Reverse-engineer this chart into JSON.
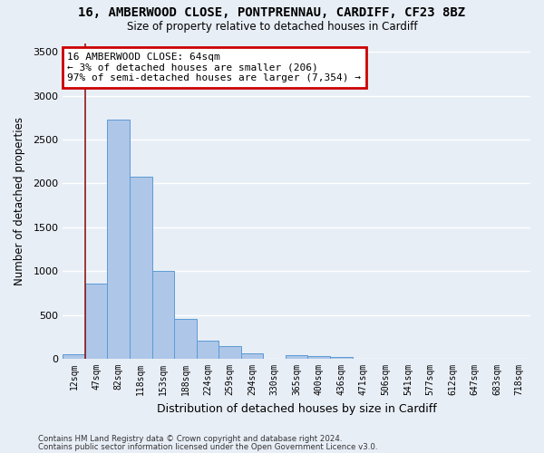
{
  "title1": "16, AMBERWOOD CLOSE, PONTPRENNAU, CARDIFF, CF23 8BZ",
  "title2": "Size of property relative to detached houses in Cardiff",
  "xlabel": "Distribution of detached houses by size in Cardiff",
  "ylabel": "Number of detached properties",
  "categories": [
    "12sqm",
    "47sqm",
    "82sqm",
    "118sqm",
    "153sqm",
    "188sqm",
    "224sqm",
    "259sqm",
    "294sqm",
    "330sqm",
    "365sqm",
    "400sqm",
    "436sqm",
    "471sqm",
    "506sqm",
    "541sqm",
    "577sqm",
    "612sqm",
    "647sqm",
    "683sqm",
    "718sqm"
  ],
  "values": [
    55,
    855,
    2730,
    2075,
    1005,
    455,
    205,
    145,
    65,
    0,
    45,
    35,
    25,
    0,
    0,
    0,
    0,
    0,
    0,
    0,
    0
  ],
  "bar_color": "#aec6e8",
  "bar_edge_color": "#5b9bd5",
  "vline_x": 0.5,
  "vline_color": "#8b1a1a",
  "annotation_text": "16 AMBERWOOD CLOSE: 64sqm\n← 3% of detached houses are smaller (206)\n97% of semi-detached houses are larger (7,354) →",
  "annotation_box_color": "#ffffff",
  "annotation_box_edge": "#cc0000",
  "ylim": [
    0,
    3600
  ],
  "yticks": [
    0,
    500,
    1000,
    1500,
    2000,
    2500,
    3000,
    3500
  ],
  "background_color": "#e8eef6",
  "grid_color": "#ffffff",
  "footer1": "Contains HM Land Registry data © Crown copyright and database right 2024.",
  "footer2": "Contains public sector information licensed under the Open Government Licence v3.0."
}
